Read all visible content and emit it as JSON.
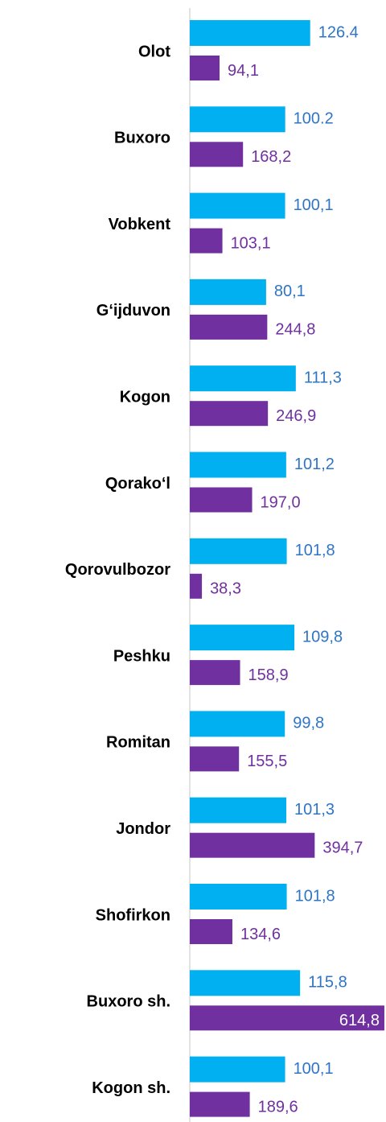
{
  "chart_data": {
    "type": "bar",
    "orientation": "horizontal",
    "categories": [
      "Olot",
      "Buxoro",
      "Vobkent",
      "G‘ijduvon",
      "Kogon",
      "Qorako‘l",
      "Qorovulbozor",
      "Peshku",
      "Romitan",
      "Jondor",
      "Shofirkon",
      "Buxoro sh.",
      "Kogon sh."
    ],
    "xlim": [
      0,
      206
    ],
    "x2lim": [
      0,
      620
    ],
    "series": [
      {
        "color": "#00b0f0",
        "label_color": "#2e75c6",
        "values": [
          126.4,
          100.2,
          100.1,
          80.1,
          111.3,
          101.2,
          101.8,
          109.8,
          99.8,
          101.3,
          101.8,
          115.8,
          100.1
        ],
        "value_labels": [
          "126.4",
          "100.2",
          "100,1",
          "80,1",
          "111,3",
          "101,2",
          "101,8",
          "109,8",
          "99,8",
          "101,3",
          "101,8",
          "115,8",
          "100,1"
        ]
      },
      {
        "color": "#7030a0",
        "label_color": "#7030a0",
        "axis": "x2",
        "values": [
          94.1,
          168.2,
          103.1,
          244.8,
          246.9,
          197.0,
          38.3,
          158.9,
          155.5,
          394.7,
          134.6,
          614.8,
          189.6
        ],
        "value_labels": [
          "94,1",
          "168,2",
          "103,1",
          "244,8",
          "246,9",
          "197,0",
          "38,3",
          "158,9",
          "155,5",
          "394,7",
          "134,6",
          "614,8",
          "189,6"
        ]
      }
    ]
  }
}
